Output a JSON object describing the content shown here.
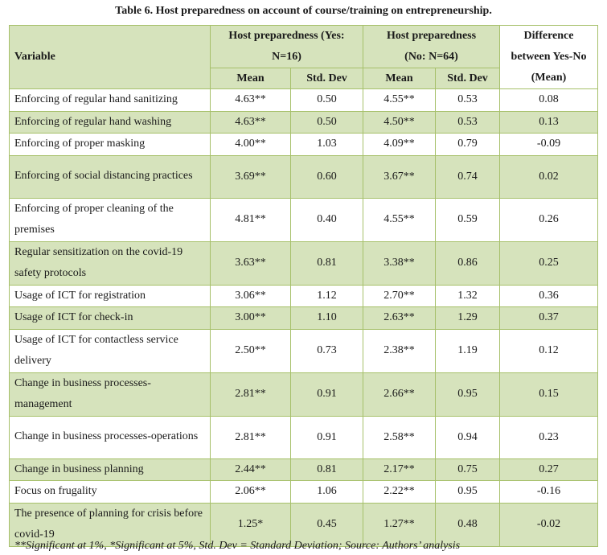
{
  "caption": "Table 6. Host preparedness on account of course/training on entrepreneurship.",
  "header": {
    "variable": "Variable",
    "yes_group_line1": "Host preparedness (Yes:",
    "yes_group_line2": "N=16)",
    "no_group_line1": "Host preparedness",
    "no_group_line2": "(No: N=64)",
    "diff_line1": "Difference",
    "diff_line2": "between Yes-No",
    "diff_line3": "(Mean)",
    "mean": "Mean",
    "std_dev": "Std. Dev"
  },
  "rows": [
    {
      "variable": "Enforcing of regular hand sanitizing",
      "yes_mean": "4.63**",
      "yes_sd": "0.50",
      "no_mean": "4.55**",
      "no_sd": "0.53",
      "diff": "0.08"
    },
    {
      "variable": "Enforcing of regular hand washing",
      "yes_mean": "4.63**",
      "yes_sd": "0.50",
      "no_mean": "4.50**",
      "no_sd": "0.53",
      "diff": "0.13"
    },
    {
      "variable": "Enforcing of proper masking",
      "yes_mean": "4.00**",
      "yes_sd": "1.03",
      "no_mean": "4.09**",
      "no_sd": "0.79",
      "diff": "-0.09"
    },
    {
      "variable": "Enforcing of social distancing practices",
      "yes_mean": "3.69**",
      "yes_sd": "0.60",
      "no_mean": "3.67**",
      "no_sd": "0.74",
      "diff": "0.02"
    },
    {
      "variable": "Enforcing of proper cleaning of the premises",
      "yes_mean": "4.81**",
      "yes_sd": "0.40",
      "no_mean": "4.55**",
      "no_sd": "0.59",
      "diff": "0.26"
    },
    {
      "variable": "Regular sensitization on the covid-19 safety protocols",
      "yes_mean": "3.63**",
      "yes_sd": "0.81",
      "no_mean": "3.38**",
      "no_sd": "0.86",
      "diff": "0.25"
    },
    {
      "variable": "Usage of ICT for registration",
      "yes_mean": "3.06**",
      "yes_sd": "1.12",
      "no_mean": "2.70**",
      "no_sd": "1.32",
      "diff": "0.36"
    },
    {
      "variable": "Usage of ICT for check-in",
      "yes_mean": "3.00**",
      "yes_sd": "1.10",
      "no_mean": "2.63**",
      "no_sd": "1.29",
      "diff": "0.37"
    },
    {
      "variable": "Usage of ICT for contactless service delivery",
      "yes_mean": "2.50**",
      "yes_sd": "0.73",
      "no_mean": "2.38**",
      "no_sd": "1.19",
      "diff": "0.12"
    },
    {
      "variable": "Change in business processes-management",
      "yes_mean": "2.81**",
      "yes_sd": "0.91",
      "no_mean": "2.66**",
      "no_sd": "0.95",
      "diff": "0.15"
    },
    {
      "variable": "Change in business processes-operations",
      "yes_mean": "2.81**",
      "yes_sd": "0.91",
      "no_mean": "2.58**",
      "no_sd": "0.94",
      "diff": "0.23"
    },
    {
      "variable": "Change in business planning",
      "yes_mean": "2.44**",
      "yes_sd": "0.81",
      "no_mean": "2.17**",
      "no_sd": "0.75",
      "diff": "0.27"
    },
    {
      "variable": "Focus on frugality",
      "yes_mean": "2.06**",
      "yes_sd": "1.06",
      "no_mean": "2.22**",
      "no_sd": "0.95",
      "diff": "-0.16"
    },
    {
      "variable": "The presence of planning for crisis before covid-19",
      "yes_mean": "1.25*",
      "yes_sd": "0.45",
      "no_mean": "1.27**",
      "no_sd": "0.48",
      "diff": "-0.02"
    }
  ],
  "footnote": "**Significant at 1%, *Significant at 5%, Std. Dev = Standard Deviation; Source: Authors’ analysis"
}
